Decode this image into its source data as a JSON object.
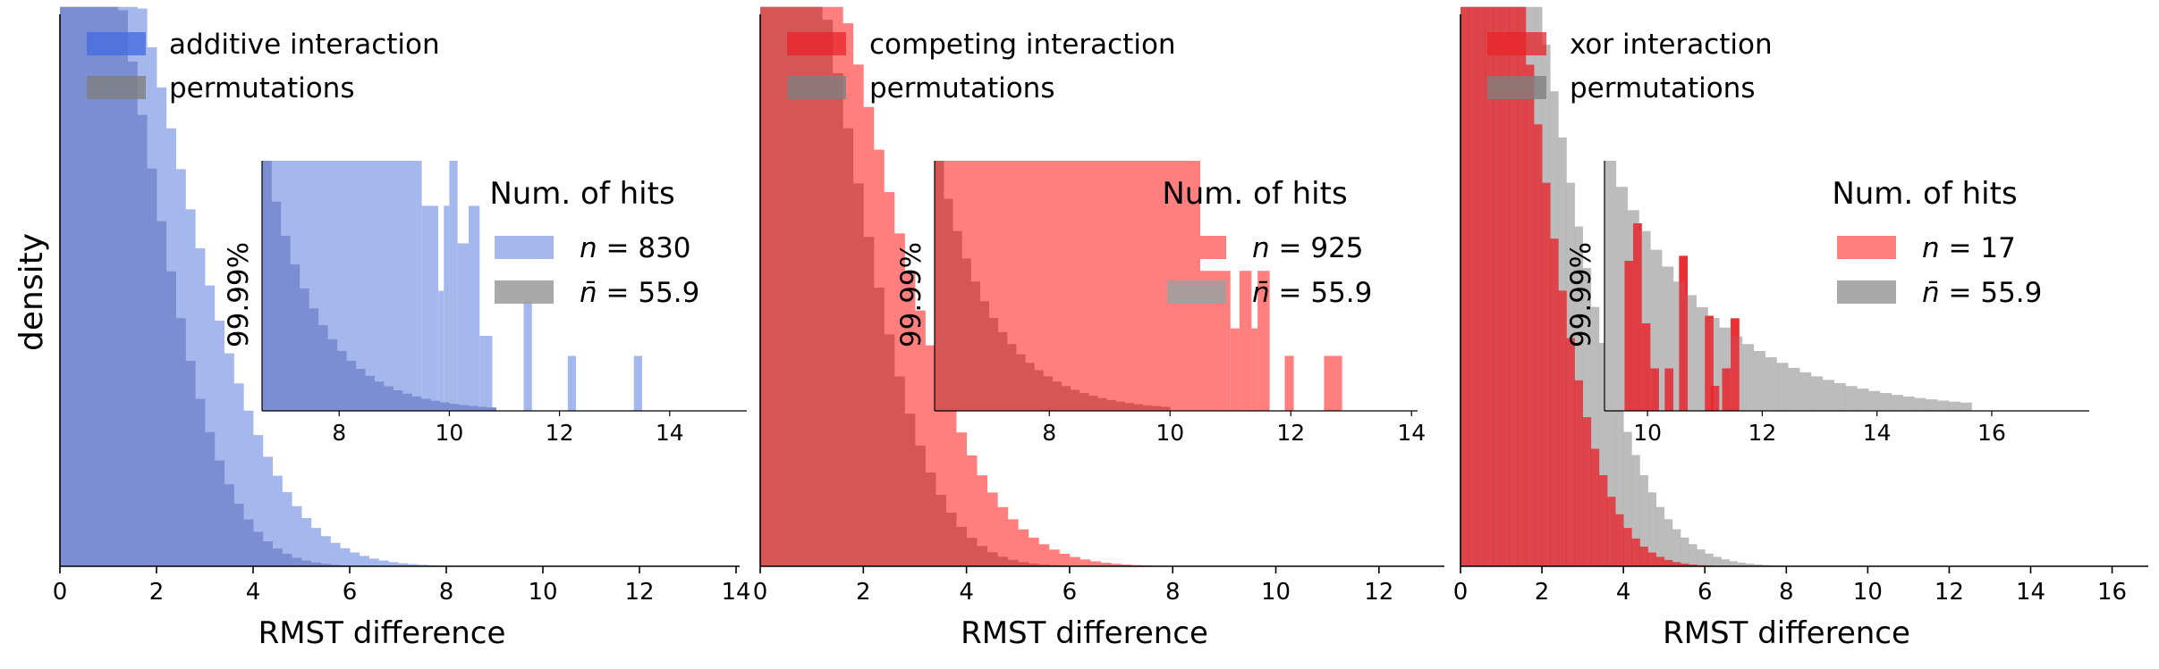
{
  "figure": {
    "ylabel": "density",
    "inset_ylabel": "99.99%",
    "legend_title": "Num. of hits",
    "n_symbol": "n",
    "nbar_symbol": "n̄",
    "equals": "= "
  },
  "chart_data": [
    {
      "type": "bar",
      "panel": "additive",
      "xlabel": "RMST difference",
      "xlim": [
        0,
        14
      ],
      "xticks": [
        0,
        2,
        4,
        6,
        8,
        10,
        12,
        14
      ],
      "ylim": [
        0,
        1
      ],
      "legend": [
        "additive interaction",
        "permutations"
      ],
      "colors": {
        "observed": "#4169e1",
        "permutations": "#808080",
        "observed_light": "#a5b8ee",
        "overlap": "#7b8ed1"
      },
      "hist_params": {
        "observed_mean": 2.0,
        "observed_sd": 2.3,
        "perm_mean": 1.65,
        "perm_sd": 1.75,
        "bin_width": 0.2,
        "max": 9.8
      },
      "inset": {
        "xlim": [
          6.6,
          15.4
        ],
        "xticks": [
          8,
          10,
          12,
          14
        ],
        "ylim": [
          0,
          1
        ],
        "observed_bins": [
          [
            6.6,
            9.5,
            1.0
          ],
          [
            9.5,
            9.8,
            0.82
          ],
          [
            9.8,
            9.9,
            0.48
          ],
          [
            9.9,
            10.0,
            0.82
          ],
          [
            10.0,
            10.15,
            1.0
          ],
          [
            10.15,
            10.35,
            0.67
          ],
          [
            10.35,
            10.55,
            0.82
          ],
          [
            10.55,
            10.78,
            0.3
          ],
          [
            11.35,
            11.5,
            0.44
          ],
          [
            12.15,
            12.3,
            0.22
          ],
          [
            13.35,
            13.5,
            0.22
          ]
        ],
        "perm_tail": {
          "start": 6.6,
          "end": 10.8,
          "decay": 1.05,
          "bin_width": 0.17
        }
      },
      "legend_hits": {
        "n": "830",
        "nbar": "55.9"
      }
    },
    {
      "type": "bar",
      "panel": "competing",
      "xlabel": "RMST difference",
      "xlim": [
        0,
        13.2
      ],
      "xticks": [
        0,
        2,
        4,
        6,
        8,
        10,
        12
      ],
      "ylim": [
        0,
        1
      ],
      "legend": [
        "competing interaction",
        "permutations"
      ],
      "colors": {
        "observed": "#e8242a",
        "permutations": "#808080",
        "observed_light": "#ff7f7f",
        "overlap": "#d65555"
      },
      "hist_params": {
        "observed_mean": 2.0,
        "observed_sd": 2.2,
        "perm_mean": 1.55,
        "perm_sd": 1.7,
        "bin_width": 0.2,
        "max": 11.5
      },
      "inset": {
        "xlim": [
          6.1,
          14.1
        ],
        "xticks": [
          8,
          10,
          12,
          14
        ],
        "ylim": [
          0,
          1
        ],
        "observed_bins": [
          [
            6.1,
            10.5,
            1.0
          ],
          [
            10.5,
            11.0,
            0.56
          ],
          [
            11.0,
            11.15,
            0.33
          ],
          [
            11.15,
            11.35,
            0.56
          ],
          [
            11.35,
            11.45,
            0.33
          ],
          [
            11.45,
            11.65,
            0.56
          ],
          [
            11.9,
            12.05,
            0.22
          ],
          [
            12.55,
            12.85,
            0.22
          ]
        ],
        "perm_tail": {
          "start": 6.1,
          "end": 10.0,
          "decay": 1.1,
          "bin_width": 0.15
        }
      },
      "legend_hits": {
        "n": "925",
        "nbar": "55.9"
      }
    },
    {
      "type": "bar",
      "panel": "xor",
      "xlabel": "RMST difference",
      "xlim": [
        0,
        16.8
      ],
      "xticks": [
        0,
        2,
        4,
        6,
        8,
        10,
        12,
        14,
        16
      ],
      "ylim": [
        0,
        1
      ],
      "legend": [
        "xor interaction",
        "permutations"
      ],
      "colors": {
        "observed": "#e8242a",
        "permutations": "#b0b0b0",
        "observed_light": "#ff7f7f",
        "overlap": "#d65555"
      },
      "hist_params": {
        "observed_mean": 1.1,
        "observed_sd": 1.75,
        "perm_mean": 2.0,
        "perm_sd": 2.25,
        "bin_width": 0.2,
        "max": 15.0
      },
      "inset": {
        "xlim": [
          9.25,
          17.7
        ],
        "xticks": [
          10,
          12,
          14,
          16
        ],
        "ylim": [
          0,
          1
        ],
        "observed_bins": [
          [
            9.6,
            9.75,
            0.6
          ],
          [
            9.75,
            9.9,
            0.75
          ],
          [
            9.9,
            10.05,
            0.35
          ],
          [
            10.05,
            10.2,
            0.17
          ],
          [
            10.3,
            10.45,
            0.17
          ],
          [
            10.55,
            10.7,
            0.62
          ],
          [
            11.0,
            11.15,
            0.38
          ],
          [
            11.1,
            11.25,
            0.1
          ],
          [
            11.3,
            11.45,
            0.17
          ],
          [
            11.45,
            11.6,
            0.37
          ]
        ],
        "perm_tail": {
          "start": 9.25,
          "end": 15.6,
          "decay": 0.55,
          "bin_width": 0.2,
          "scale": 1.0
        }
      },
      "legend_hits": {
        "n": "17",
        "nbar": "55.9"
      }
    }
  ]
}
